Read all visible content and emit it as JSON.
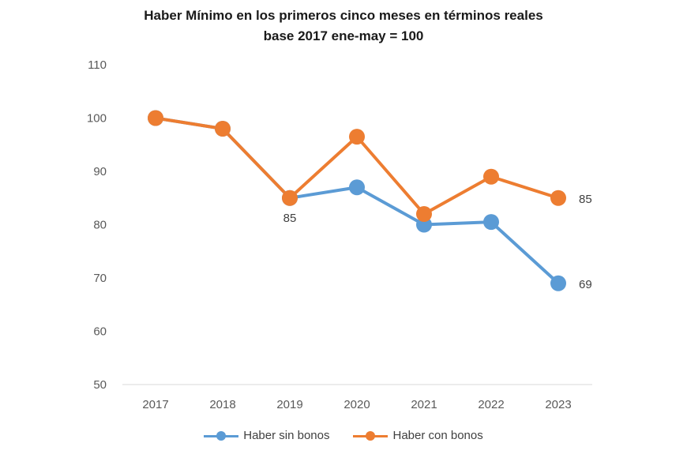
{
  "chart_data": {
    "type": "line",
    "title": "Haber Mínimo en los primeros cinco meses en términos reales",
    "subtitle": "base 2017 ene-may = 100",
    "categories": [
      "2017",
      "2018",
      "2019",
      "2020",
      "2021",
      "2022",
      "2023"
    ],
    "ylim": [
      50,
      110
    ],
    "yticks": [
      50,
      60,
      70,
      80,
      90,
      100,
      110
    ],
    "grid": false,
    "legend_position": "bottom",
    "series": [
      {
        "name": "Haber sin bonos",
        "color": "#5b9bd5",
        "values": [
          100,
          98,
          85,
          87,
          80,
          80.5,
          69
        ]
      },
      {
        "name": "Haber con bonos",
        "color": "#ed7d31",
        "values": [
          100,
          98,
          85,
          96.5,
          82,
          89,
          85
        ]
      }
    ],
    "data_labels": [
      {
        "series": 0,
        "index": 2,
        "text": "85",
        "position": "below"
      },
      {
        "series": 1,
        "index": 6,
        "text": "85",
        "position": "right"
      },
      {
        "series": 0,
        "index": 6,
        "text": "69",
        "position": "right"
      }
    ]
  }
}
